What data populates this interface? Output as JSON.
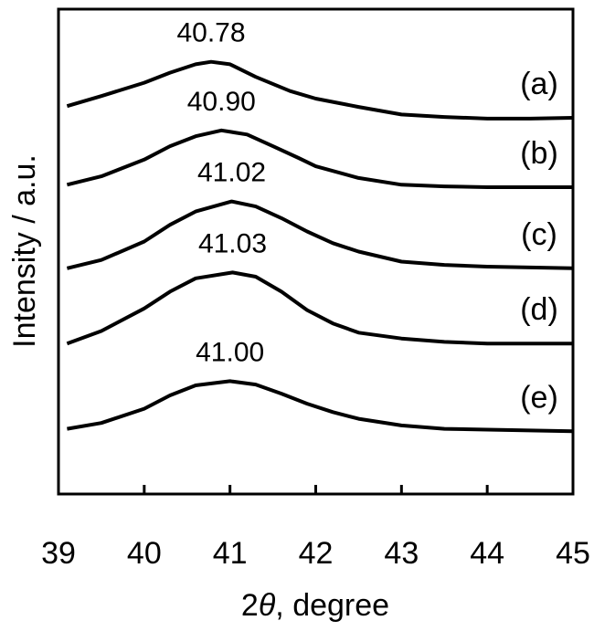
{
  "chart_data": {
    "type": "line",
    "xlabel": "2θ, degree",
    "ylabel": "Intensity / a.u.",
    "xlim": [
      39,
      45
    ],
    "x_ticks": [
      "39",
      "40",
      "41",
      "42",
      "43",
      "44",
      "45"
    ],
    "y_ticks": [],
    "grid": false,
    "legend": "none",
    "line_color": "#000000",
    "series": [
      {
        "name": "(a)",
        "peak_label": "40.78",
        "x": [
          39.1,
          39.5,
          40.0,
          40.3,
          40.6,
          40.78,
          41.0,
          41.3,
          41.7,
          42.0,
          42.5,
          43.0,
          43.5,
          44.0,
          44.5,
          45.0
        ],
        "y": [
          3.34,
          3.46,
          3.62,
          3.74,
          3.84,
          3.87,
          3.84,
          3.69,
          3.52,
          3.43,
          3.33,
          3.24,
          3.21,
          3.19,
          3.19,
          3.2
        ]
      },
      {
        "name": "(b)",
        "peak_label": "40.90",
        "x": [
          39.1,
          39.5,
          40.0,
          40.3,
          40.6,
          40.9,
          41.2,
          41.5,
          41.8,
          42.0,
          42.5,
          43.0,
          43.5,
          44.0,
          44.5,
          45.0
        ],
        "y": [
          2.4,
          2.5,
          2.7,
          2.86,
          2.98,
          3.05,
          3.0,
          2.86,
          2.72,
          2.62,
          2.48,
          2.4,
          2.38,
          2.37,
          2.37,
          2.37
        ]
      },
      {
        "name": "(c)",
        "peak_label": "41.02",
        "x": [
          39.1,
          39.5,
          40.0,
          40.3,
          40.6,
          41.02,
          41.3,
          41.6,
          41.9,
          42.2,
          42.5,
          43.0,
          43.5,
          44.0,
          44.5,
          45.0
        ],
        "y": [
          1.4,
          1.5,
          1.72,
          1.92,
          2.08,
          2.2,
          2.14,
          2.0,
          1.84,
          1.7,
          1.6,
          1.48,
          1.44,
          1.42,
          1.41,
          1.4
        ]
      },
      {
        "name": "(d)",
        "peak_label": "41.03",
        "x": [
          39.1,
          39.5,
          40.0,
          40.3,
          40.6,
          41.03,
          41.3,
          41.6,
          41.9,
          42.2,
          42.5,
          43.0,
          43.5,
          44.0,
          44.5,
          45.0
        ],
        "y": [
          0.5,
          0.65,
          0.92,
          1.12,
          1.28,
          1.35,
          1.3,
          1.12,
          0.9,
          0.74,
          0.63,
          0.56,
          0.52,
          0.5,
          0.5,
          0.5
        ]
      },
      {
        "name": "(e)",
        "peak_label": "41.00",
        "x": [
          39.1,
          39.5,
          40.0,
          40.3,
          40.6,
          41.0,
          41.3,
          41.6,
          41.9,
          42.2,
          42.5,
          43.0,
          43.5,
          44.0,
          44.5,
          45.0
        ],
        "y": [
          -0.52,
          -0.45,
          -0.28,
          -0.12,
          0.0,
          0.05,
          0.01,
          -0.1,
          -0.22,
          -0.32,
          -0.4,
          -0.48,
          -0.52,
          -0.53,
          -0.54,
          -0.55
        ]
      }
    ]
  }
}
